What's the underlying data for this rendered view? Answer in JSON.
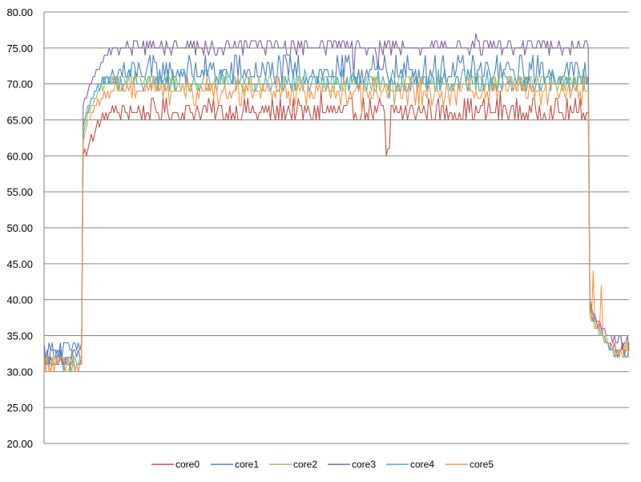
{
  "chart_data": {
    "type": "line",
    "title": "",
    "xlabel": "",
    "ylabel": "",
    "ylim": [
      20,
      80
    ],
    "y_ticks": [
      "80.00",
      "75.00",
      "70.00",
      "65.00",
      "60.00",
      "55.00",
      "50.00",
      "45.00",
      "40.00",
      "35.00",
      "30.00",
      "25.00",
      "20.00"
    ],
    "x_count": 360,
    "grid": "horizontal",
    "legend": "bottom-center",
    "colors": [
      "#C0504D",
      "#4F81BD",
      "#9BBB59",
      "#8064A2",
      "#4BACC6",
      "#F79646"
    ],
    "series": [
      {
        "name": "core0",
        "base": 66,
        "idle": [
          31,
          32
        ],
        "ramp": [
          60,
          61,
          60,
          61,
          62,
          63,
          62,
          63,
          64,
          65,
          64,
          65,
          66,
          65,
          66,
          65,
          66,
          66,
          67,
          66
        ],
        "after": [
          40,
          38,
          37,
          38,
          37,
          36,
          37,
          36,
          35,
          35,
          34,
          34,
          33,
          33,
          33,
          34,
          33,
          32,
          33,
          33
        ],
        "levels": [
          {
            "v": 65,
            "w": 3
          },
          {
            "v": 66,
            "w": 4
          },
          {
            "v": 67,
            "w": 3
          },
          {
            "v": 68,
            "w": 1
          }
        ],
        "spikes": [
          [
            210,
            60
          ],
          [
            211,
            61
          ],
          [
            212,
            61
          ],
          [
            280,
            69
          ],
          [
            170,
            69
          ]
        ],
        "end": [
          32,
          34
        ]
      },
      {
        "name": "core1",
        "base": 71,
        "idle": [
          32,
          34
        ],
        "ramp": [
          64,
          65,
          66,
          66,
          67,
          68,
          68,
          69,
          69,
          70,
          70,
          70,
          71,
          70,
          71,
          71,
          70,
          71,
          72,
          71
        ],
        "after": [
          39,
          38,
          38,
          37,
          36,
          36,
          35,
          35,
          35,
          34,
          34,
          34,
          33,
          34,
          33,
          33,
          33,
          32,
          33,
          33
        ],
        "levels": [
          {
            "v": 70,
            "w": 2
          },
          {
            "v": 71,
            "w": 4
          },
          {
            "v": 72,
            "w": 3
          },
          {
            "v": 73,
            "w": 2
          },
          {
            "v": 74,
            "w": 1
          }
        ],
        "spikes": [
          [
            120,
            74
          ],
          [
            240,
            74
          ],
          [
            300,
            74
          ]
        ],
        "end": [
          32,
          34
        ]
      },
      {
        "name": "core2",
        "base": 70,
        "idle": [
          30,
          32
        ],
        "ramp": [
          63,
          64,
          65,
          66,
          66,
          67,
          67,
          68,
          68,
          69,
          69,
          70,
          69,
          70,
          70,
          70,
          70,
          70,
          71,
          70
        ],
        "after": [
          38,
          37,
          37,
          36,
          36,
          36,
          35,
          35,
          35,
          34,
          34,
          34,
          34,
          33,
          33,
          33,
          33,
          33,
          33,
          33
        ],
        "levels": [
          {
            "v": 69,
            "w": 2
          },
          {
            "v": 70,
            "w": 5
          },
          {
            "v": 71,
            "w": 4
          }
        ],
        "spikes": [
          [
            215,
            67
          ],
          [
            216,
            69
          ]
        ],
        "end": [
          32,
          34
        ]
      },
      {
        "name": "core3",
        "base": 75,
        "idle": [
          31,
          33
        ],
        "ramp": [
          67,
          68,
          68,
          69,
          70,
          70,
          71,
          71,
          72,
          72,
          72,
          73,
          73,
          74,
          74,
          74,
          75,
          74,
          75,
          75
        ],
        "after": [
          40,
          39,
          38,
          38,
          37,
          37,
          37,
          36,
          36,
          36,
          35,
          35,
          35,
          35,
          34,
          35,
          34,
          34,
          35,
          35
        ],
        "levels": [
          {
            "v": 75,
            "w": 6
          },
          {
            "v": 76,
            "w": 4
          },
          {
            "v": 74,
            "w": 1
          }
        ],
        "spikes": [
          [
            190,
            71
          ],
          [
            205,
            72
          ],
          [
            265,
            77
          ],
          [
            150,
            74
          ]
        ],
        "end": [
          33,
          35
        ]
      },
      {
        "name": "core4",
        "base": 70,
        "idle": [
          30,
          33
        ],
        "ramp": [
          64,
          65,
          66,
          67,
          67,
          68,
          68,
          69,
          69,
          70,
          69,
          70,
          70,
          71,
          70,
          70,
          71,
          70,
          70,
          71
        ],
        "after": [
          39,
          38,
          37,
          37,
          36,
          36,
          36,
          35,
          35,
          35,
          34,
          34,
          33,
          33,
          33,
          32,
          33,
          33,
          32,
          33
        ],
        "levels": [
          {
            "v": 69,
            "w": 2
          },
          {
            "v": 70,
            "w": 4
          },
          {
            "v": 71,
            "w": 3
          },
          {
            "v": 72,
            "w": 1
          }
        ],
        "spikes": [
          [
            212,
            68
          ],
          [
            220,
            72
          ]
        ],
        "end": [
          32,
          33
        ]
      },
      {
        "name": "core5",
        "base": 69,
        "idle": [
          30,
          32
        ],
        "ramp": [
          62,
          63,
          64,
          65,
          65,
          66,
          66,
          67,
          67,
          68,
          67,
          68,
          68,
          69,
          68,
          69,
          68,
          69,
          69,
          69
        ],
        "after": [
          38,
          37,
          44,
          37,
          36,
          36,
          36,
          42,
          35,
          35,
          35,
          34,
          34,
          34,
          33,
          33,
          32,
          33,
          32,
          33
        ],
        "levels": [
          {
            "v": 68,
            "w": 2
          },
          {
            "v": 69,
            "w": 4
          },
          {
            "v": 70,
            "w": 3
          },
          {
            "v": 71,
            "w": 1
          },
          {
            "v": 67,
            "w": 1
          }
        ],
        "spikes": [
          [
            195,
            66
          ],
          [
            230,
            67
          ]
        ],
        "end": [
          32,
          34
        ]
      }
    ]
  }
}
